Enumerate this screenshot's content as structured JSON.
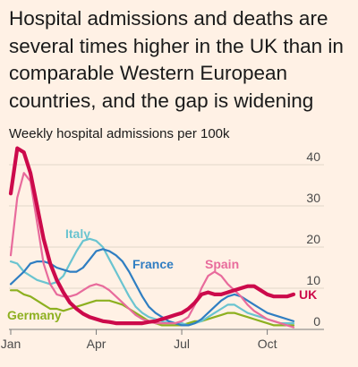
{
  "title": "Hospital admissions and deaths are several times higher in the UK than in comparable Western European countries, and the gap is widening",
  "subtitle": "Weekly hospital admissions per 100k",
  "chart_data": {
    "type": "line",
    "ylabel": "Weekly hospital admissions per 100k",
    "ylim": [
      0,
      45
    ],
    "yticks": [
      0,
      10,
      20,
      30,
      40
    ],
    "xlim": [
      1,
      44
    ],
    "xticks": [
      {
        "week": 1,
        "label": "Jan"
      },
      {
        "week": 14,
        "label": "Apr"
      },
      {
        "week": 27,
        "label": "Jul"
      },
      {
        "week": 40,
        "label": "Oct"
      }
    ],
    "grid": "horizontal",
    "series": [
      {
        "name": "Germany",
        "color": "#8db020",
        "x": [
          1,
          2,
          3,
          4,
          5,
          6,
          7,
          8,
          9,
          10,
          11,
          12,
          13,
          14,
          15,
          16,
          17,
          18,
          19,
          20,
          21,
          22,
          23,
          24,
          25,
          26,
          27,
          28,
          29,
          30,
          31,
          32,
          33,
          34,
          35,
          36,
          37,
          38,
          39,
          40,
          41,
          42,
          43,
          44
        ],
        "values": [
          9.5,
          9.5,
          8.5,
          8,
          7,
          6,
          5,
          5,
          4.5,
          5,
          5.5,
          6,
          6.5,
          7,
          7,
          7,
          6.5,
          6,
          5,
          4,
          3,
          2,
          1.5,
          1,
          1,
          1,
          1,
          1.5,
          2,
          2,
          2.5,
          3,
          3.5,
          4,
          4,
          3.5,
          3,
          2.5,
          2,
          1.5,
          1,
          1,
          1,
          1
        ]
      },
      {
        "name": "Italy",
        "color": "#6ac4d0",
        "x": [
          1,
          2,
          3,
          4,
          5,
          6,
          7,
          8,
          9,
          10,
          11,
          12,
          13,
          14,
          15,
          16,
          17,
          18,
          19,
          20,
          21,
          22,
          23,
          24,
          25,
          26,
          27,
          28,
          29,
          30,
          31,
          32,
          33,
          34,
          35,
          36,
          37,
          38,
          39,
          40,
          41,
          42,
          43,
          44
        ],
        "values": [
          16.5,
          16,
          14,
          13,
          12,
          11.5,
          11,
          11.5,
          13,
          16,
          19,
          21.5,
          22,
          21.5,
          20,
          17,
          14,
          11,
          8,
          5.5,
          4,
          3,
          2.5,
          2,
          1.5,
          1.5,
          1.5,
          1,
          1.5,
          2,
          3,
          4,
          5,
          6,
          6,
          5,
          4,
          3.5,
          3,
          2.5,
          2,
          1.5,
          1.5,
          1.5
        ]
      },
      {
        "name": "France",
        "color": "#2f7ec2",
        "x": [
          1,
          2,
          3,
          4,
          5,
          6,
          7,
          8,
          9,
          10,
          11,
          12,
          13,
          14,
          15,
          16,
          17,
          18,
          19,
          20,
          21,
          22,
          23,
          24,
          25,
          26,
          27,
          28,
          29,
          30,
          31,
          32,
          33,
          34,
          35,
          36,
          37,
          38,
          39,
          40,
          41,
          42,
          43,
          44
        ],
        "values": [
          11,
          12.5,
          14,
          16,
          16.5,
          16.5,
          16,
          15,
          14.5,
          14,
          14,
          15,
          17,
          19,
          19.5,
          19,
          18,
          16.5,
          14,
          11,
          8,
          5.5,
          4,
          3,
          2,
          1.5,
          1,
          1,
          1.5,
          2.5,
          4,
          5.5,
          7,
          8,
          8.5,
          8,
          7,
          6,
          5,
          4,
          3.5,
          3,
          2.5,
          2
        ]
      },
      {
        "name": "Spain",
        "color": "#e86b9c",
        "x": [
          1,
          2,
          3,
          4,
          5,
          6,
          7,
          8,
          9,
          10,
          11,
          12,
          13,
          14,
          15,
          16,
          17,
          18,
          19,
          20,
          21,
          22,
          23,
          24,
          25,
          26,
          27,
          28,
          29,
          30,
          31,
          32,
          33,
          34,
          35,
          36,
          37,
          38,
          39,
          40,
          41,
          42,
          43,
          44
        ],
        "values": [
          18,
          32,
          38,
          36,
          26,
          16,
          11,
          8.5,
          8,
          8,
          8.5,
          9.5,
          10.5,
          11,
          10.5,
          9.5,
          8,
          6.5,
          5,
          3.5,
          2.5,
          2,
          1.5,
          1.5,
          1.5,
          1.5,
          2,
          3,
          6,
          10,
          13,
          14,
          13,
          11,
          9.5,
          8,
          6,
          4.5,
          3.5,
          2.5,
          2,
          1.5,
          1,
          0.5
        ]
      },
      {
        "name": "UK",
        "color": "#cc0a4b",
        "x": [
          1,
          2,
          3,
          4,
          5,
          6,
          7,
          8,
          9,
          10,
          11,
          12,
          13,
          14,
          15,
          16,
          17,
          18,
          19,
          20,
          21,
          22,
          23,
          24,
          25,
          26,
          27,
          28,
          29,
          30,
          31,
          32,
          33,
          34,
          35,
          36,
          37,
          38,
          39,
          40,
          41,
          42,
          43,
          44
        ],
        "values": [
          33,
          44,
          43,
          38,
          30,
          22,
          16,
          12,
          9,
          6.5,
          5,
          3.8,
          3,
          2.5,
          2,
          1.8,
          1.5,
          1.5,
          1.5,
          1.5,
          1.5,
          1.8,
          2,
          2.5,
          3,
          3.5,
          4,
          5,
          6.5,
          8.5,
          9,
          8.5,
          8.5,
          9,
          9.5,
          10,
          10.5,
          10.5,
          9.5,
          8.5,
          8,
          8,
          8,
          8.5
        ]
      }
    ]
  }
}
